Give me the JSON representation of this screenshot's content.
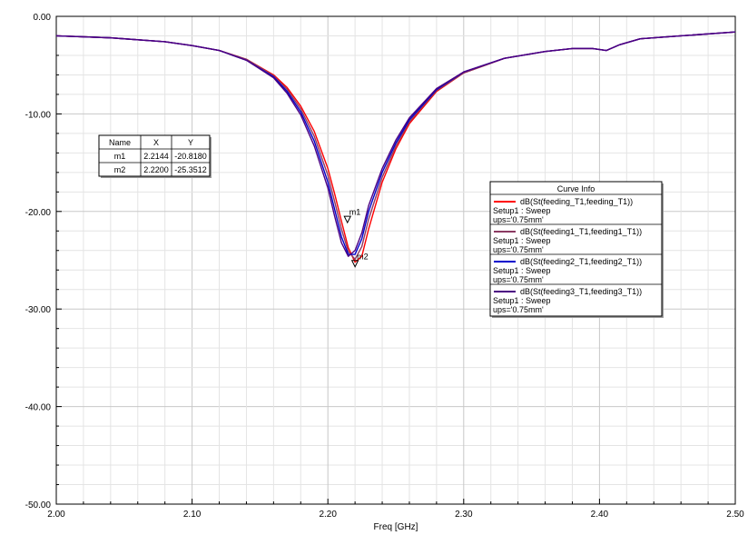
{
  "chart_data": {
    "type": "line",
    "title": "",
    "xlabel": "Freq [GHz]",
    "ylabel": "",
    "xlim": [
      2.0,
      2.5
    ],
    "ylim": [
      -50,
      0
    ],
    "x_ticks": [
      2.0,
      2.1,
      2.2,
      2.3,
      2.4,
      2.5
    ],
    "x_tick_labels": [
      "2.00",
      "2.10",
      "2.20",
      "2.30",
      "2.40",
      "2.50"
    ],
    "y_ticks": [
      0,
      -10,
      -20,
      -30,
      -40,
      -50
    ],
    "y_tick_labels": [
      "0.00",
      "-10.00",
      "-20.00",
      "-30.00",
      "-40.00",
      "-50.00"
    ],
    "grid": true,
    "legend": {
      "title": "Curve Info",
      "placement": "right",
      "entries": [
        {
          "label": "dB(St(feeding_T1,feeding_T1))",
          "line2": "Setup1 : Sweep",
          "line3": "ups='0.75mm'",
          "color": "#ff0000"
        },
        {
          "label": "dB(St(feeding1_T1,feeding1_T1))",
          "line2": "Setup1 : Sweep",
          "line3": "ups='0.75mm'",
          "color": "#8b3a62"
        },
        {
          "label": "dB(St(feeding2_T1,feeding2_T1))",
          "line2": "Setup1 : Sweep",
          "line3": "ups='0.75mm'",
          "color": "#0000cc"
        },
        {
          "label": "dB(St(feeding3_T1,feeding3_T1))",
          "line2": "Setup1 : Sweep",
          "line3": "ups='0.75mm'",
          "color": "#4b0082"
        }
      ]
    },
    "markers": {
      "headers": [
        "Name",
        "X",
        "Y"
      ],
      "rows": [
        {
          "name": "m1",
          "x": "2.2144",
          "y": "-20.8180"
        },
        {
          "name": "m2",
          "x": "2.2200",
          "y": "-25.3512"
        }
      ],
      "points": [
        {
          "label": "m1",
          "x": 2.2144,
          "y": -20.818
        },
        {
          "label": "m2",
          "x": 2.22,
          "y": -25.3512
        }
      ]
    },
    "series": [
      {
        "color": "#ff0000",
        "x": [
          2.0,
          2.04,
          2.08,
          2.1,
          2.12,
          2.14,
          2.16,
          2.17,
          2.18,
          2.19,
          2.2,
          2.205,
          2.21,
          2.215,
          2.22,
          2.225,
          2.23,
          2.24,
          2.25,
          2.26,
          2.28,
          2.3,
          2.33,
          2.36,
          2.38,
          2.395,
          2.405,
          2.415,
          2.43,
          2.46,
          2.5
        ],
        "y": [
          -2.0,
          -2.2,
          -2.6,
          -3.0,
          -3.5,
          -4.4,
          -6.0,
          -7.3,
          -9.2,
          -11.8,
          -15.6,
          -18.2,
          -21.0,
          -23.7,
          -25.2,
          -24.6,
          -21.8,
          -17.0,
          -13.6,
          -11.0,
          -7.7,
          -5.8,
          -4.3,
          -3.6,
          -3.3,
          -3.3,
          -3.5,
          -2.9,
          -2.3,
          -2.0,
          -1.6
        ]
      },
      {
        "color": "#8b3a62",
        "x": [
          2.0,
          2.04,
          2.08,
          2.1,
          2.12,
          2.14,
          2.16,
          2.17,
          2.18,
          2.19,
          2.2,
          2.205,
          2.21,
          2.215,
          2.22,
          2.225,
          2.23,
          2.24,
          2.25,
          2.26,
          2.28,
          2.3,
          2.33,
          2.36,
          2.38,
          2.395,
          2.405,
          2.415,
          2.43,
          2.46,
          2.5
        ],
        "y": [
          -2.0,
          -2.2,
          -2.6,
          -3.0,
          -3.5,
          -4.4,
          -6.1,
          -7.5,
          -9.5,
          -12.3,
          -16.3,
          -19.0,
          -21.8,
          -24.1,
          -24.9,
          -23.6,
          -20.8,
          -16.5,
          -13.3,
          -10.8,
          -7.6,
          -5.8,
          -4.3,
          -3.6,
          -3.3,
          -3.3,
          -3.5,
          -2.9,
          -2.3,
          -2.0,
          -1.6
        ]
      },
      {
        "color": "#0000cc",
        "x": [
          2.0,
          2.04,
          2.08,
          2.1,
          2.12,
          2.14,
          2.16,
          2.17,
          2.18,
          2.19,
          2.2,
          2.205,
          2.21,
          2.215,
          2.22,
          2.225,
          2.23,
          2.24,
          2.25,
          2.26,
          2.28,
          2.3,
          2.33,
          2.36,
          2.38,
          2.395,
          2.405,
          2.415,
          2.43,
          2.46,
          2.5
        ],
        "y": [
          -2.0,
          -2.2,
          -2.6,
          -3.0,
          -3.5,
          -4.5,
          -6.2,
          -7.7,
          -9.8,
          -12.8,
          -17.0,
          -19.8,
          -22.6,
          -24.4,
          -24.4,
          -22.8,
          -20.0,
          -16.0,
          -13.0,
          -10.6,
          -7.5,
          -5.7,
          -4.3,
          -3.6,
          -3.3,
          -3.3,
          -3.5,
          -2.9,
          -2.3,
          -2.0,
          -1.6
        ]
      },
      {
        "color": "#4b0082",
        "x": [
          2.0,
          2.04,
          2.08,
          2.1,
          2.12,
          2.14,
          2.16,
          2.17,
          2.18,
          2.19,
          2.2,
          2.205,
          2.21,
          2.215,
          2.22,
          2.225,
          2.23,
          2.24,
          2.25,
          2.26,
          2.28,
          2.3,
          2.33,
          2.36,
          2.38,
          2.395,
          2.405,
          2.415,
          2.43,
          2.46,
          2.5
        ],
        "y": [
          -2.0,
          -2.2,
          -2.6,
          -3.0,
          -3.5,
          -4.5,
          -6.3,
          -7.9,
          -10.1,
          -13.3,
          -17.6,
          -20.5,
          -23.2,
          -24.6,
          -24.0,
          -22.2,
          -19.4,
          -15.6,
          -12.7,
          -10.4,
          -7.4,
          -5.7,
          -4.3,
          -3.6,
          -3.3,
          -3.3,
          -3.5,
          -2.9,
          -2.3,
          -2.0,
          -1.6
        ]
      }
    ]
  }
}
